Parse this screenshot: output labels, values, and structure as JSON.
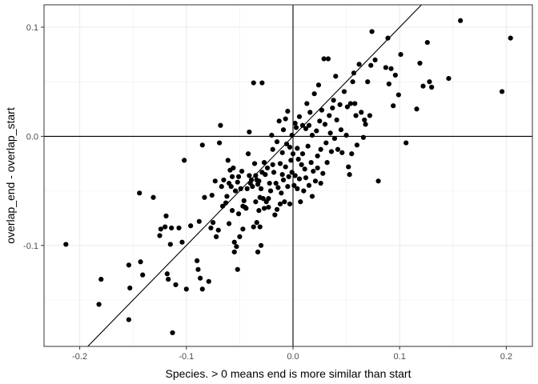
{
  "chart_data": {
    "type": "scatter",
    "title": "",
    "xlabel": "Species. > 0 means end is more similar than start",
    "ylabel": "overlap_end - overlap_start",
    "xlim": [
      -0.2335,
      0.2245
    ],
    "ylim": [
      -0.1925,
      0.1205
    ],
    "x_ticks": [
      -0.2,
      -0.1,
      0.0,
      0.1,
      0.2
    ],
    "x_tick_labels": [
      "-0.2",
      "-0.1",
      "0.0",
      "0.1",
      "0.2"
    ],
    "y_ticks": [
      -0.1,
      0.0,
      0.1
    ],
    "y_tick_labels": [
      "-0.1",
      "0.0",
      "0.1"
    ],
    "grid": true,
    "theme": "bw",
    "reference_lines": {
      "vline_x": 0,
      "hline_y": 0,
      "identity_line": {
        "slope": 1,
        "intercept": 0
      }
    },
    "point_color": "#000000",
    "series": [
      {
        "name": "",
        "points": [
          [
            -0.213,
            -0.099
          ],
          [
            -0.182,
            -0.154
          ],
          [
            -0.18,
            -0.131
          ],
          [
            -0.154,
            -0.168
          ],
          [
            -0.154,
            -0.118
          ],
          [
            -0.153,
            -0.139
          ],
          [
            -0.144,
            -0.052
          ],
          [
            -0.143,
            -0.115
          ],
          [
            -0.141,
            -0.127
          ],
          [
            -0.131,
            -0.056
          ],
          [
            -0.125,
            -0.091
          ],
          [
            -0.124,
            -0.085
          ],
          [
            -0.12,
            -0.083
          ],
          [
            -0.119,
            -0.073
          ],
          [
            -0.118,
            -0.126
          ],
          [
            -0.117,
            -0.131
          ],
          [
            -0.115,
            -0.099
          ],
          [
            -0.114,
            -0.084
          ],
          [
            -0.113,
            -0.18
          ],
          [
            -0.11,
            -0.136
          ],
          [
            -0.107,
            -0.084
          ],
          [
            -0.104,
            -0.097
          ],
          [
            -0.102,
            -0.022
          ],
          [
            -0.1,
            -0.14
          ],
          [
            -0.096,
            -0.082
          ],
          [
            -0.09,
            -0.114
          ],
          [
            -0.089,
            -0.122
          ],
          [
            -0.088,
            -0.078
          ],
          [
            -0.087,
            -0.13
          ],
          [
            -0.085,
            -0.14
          ],
          [
            -0.085,
            -0.008
          ],
          [
            -0.083,
            -0.056
          ],
          [
            -0.079,
            -0.133
          ],
          [
            -0.077,
            -0.084
          ],
          [
            -0.076,
            -0.054
          ],
          [
            -0.075,
            -0.079
          ],
          [
            -0.073,
            -0.041
          ],
          [
            -0.072,
            -0.092
          ],
          [
            -0.07,
            -0.086
          ],
          [
            -0.069,
            -0.006
          ],
          [
            -0.068,
            0.01
          ],
          [
            -0.067,
            -0.046
          ],
          [
            -0.066,
            -0.064
          ],
          [
            -0.065,
            -0.04
          ],
          [
            -0.063,
            -0.061
          ],
          [
            -0.062,
            -0.055
          ],
          [
            -0.061,
            -0.022
          ],
          [
            -0.06,
            -0.08
          ],
          [
            -0.06,
            -0.043
          ],
          [
            -0.059,
            -0.031
          ],
          [
            -0.058,
            -0.046
          ],
          [
            -0.057,
            -0.037
          ],
          [
            -0.057,
            -0.068
          ],
          [
            -0.056,
            -0.029
          ],
          [
            -0.055,
            -0.097
          ],
          [
            -0.055,
            -0.106
          ],
          [
            -0.054,
            -0.05
          ],
          [
            -0.053,
            -0.101
          ],
          [
            -0.052,
            -0.042
          ],
          [
            -0.052,
            -0.122
          ],
          [
            -0.051,
            -0.037
          ],
          [
            -0.051,
            -0.071
          ],
          [
            -0.05,
            -0.092
          ],
          [
            -0.049,
            -0.048
          ],
          [
            -0.048,
            -0.032
          ],
          [
            -0.047,
            -0.064
          ],
          [
            -0.047,
            -0.085
          ],
          [
            -0.046,
            -0.059
          ],
          [
            -0.045,
            -0.065
          ],
          [
            -0.044,
            -0.066
          ],
          [
            -0.043,
            -0.048
          ],
          [
            -0.042,
            -0.016
          ],
          [
            -0.041,
            -0.036
          ],
          [
            -0.041,
            0.004
          ],
          [
            -0.04,
            -0.043
          ],
          [
            -0.039,
            -0.04
          ],
          [
            -0.038,
            -0.046
          ],
          [
            -0.037,
            -0.083
          ],
          [
            -0.037,
            0.049
          ],
          [
            -0.036,
            -0.025
          ],
          [
            -0.035,
            -0.036
          ],
          [
            -0.035,
            -0.06
          ],
          [
            -0.034,
            -0.04
          ],
          [
            -0.034,
            -0.079
          ],
          [
            -0.033,
            -0.044
          ],
          [
            -0.033,
            -0.106
          ],
          [
            -0.032,
            -0.041
          ],
          [
            -0.032,
            -0.068
          ],
          [
            -0.031,
            -0.056
          ],
          [
            -0.031,
            -0.083
          ],
          [
            -0.03,
            -0.048
          ],
          [
            -0.03,
            -0.1
          ],
          [
            -0.029,
            -0.033
          ],
          [
            -0.029,
            0.049
          ],
          [
            -0.028,
            -0.057
          ],
          [
            -0.027,
            -0.024
          ],
          [
            -0.027,
            -0.066
          ],
          [
            -0.026,
            -0.035
          ],
          [
            -0.025,
            -0.06
          ],
          [
            -0.024,
            -0.029
          ],
          [
            -0.023,
            -0.057
          ],
          [
            -0.023,
            -0.065
          ],
          [
            -0.022,
            -0.043
          ],
          [
            -0.021,
            -0.05
          ],
          [
            -0.02,
            0.001
          ],
          [
            -0.019,
            -0.026
          ],
          [
            -0.019,
            -0.012
          ],
          [
            -0.018,
            -0.033
          ],
          [
            -0.017,
            -0.072
          ],
          [
            -0.016,
            -0.043
          ],
          [
            -0.015,
            -0.005
          ],
          [
            -0.015,
            -0.067
          ],
          [
            -0.014,
            -0.047
          ],
          [
            -0.013,
            0.014
          ],
          [
            -0.012,
            -0.025
          ],
          [
            -0.012,
            -0.062
          ],
          [
            -0.011,
            -0.052
          ],
          [
            -0.01,
            -0.015
          ],
          [
            -0.01,
            -0.035
          ],
          [
            -0.009,
            0.006
          ],
          [
            -0.009,
            -0.04
          ],
          [
            -0.008,
            -0.06
          ],
          [
            -0.007,
            -0.028
          ],
          [
            -0.007,
            0.016
          ],
          [
            -0.006,
            -0.007
          ],
          [
            -0.005,
            -0.046
          ],
          [
            -0.005,
            0.023
          ],
          [
            -0.004,
            -0.037
          ],
          [
            -0.003,
            -0.01
          ],
          [
            -0.003,
            -0.062
          ],
          [
            -0.002,
            -0.022
          ],
          [
            -0.001,
            -0.033
          ],
          [
            -0.001,
            0.001
          ],
          [
            0.0,
            -0.016
          ],
          [
            0.001,
            -0.045
          ],
          [
            0.002,
            0.012
          ],
          [
            0.002,
            -0.036
          ],
          [
            0.003,
            0.008
          ],
          [
            0.004,
            -0.011
          ],
          [
            0.004,
            -0.048
          ],
          [
            0.005,
            -0.021
          ],
          [
            0.006,
            0.018
          ],
          [
            0.006,
            -0.039
          ],
          [
            0.007,
            -0.06
          ],
          [
            0.008,
            -0.026
          ],
          [
            0.009,
            0.01
          ],
          [
            0.009,
            -0.016
          ],
          [
            0.01,
            -0.05
          ],
          [
            0.011,
            -0.03
          ],
          [
            0.012,
            0.007
          ],
          [
            0.012,
            -0.038
          ],
          [
            0.013,
            0.03
          ],
          [
            0.014,
            -0.009
          ],
          [
            0.015,
            0.01
          ],
          [
            0.015,
            -0.045
          ],
          [
            0.016,
            0.022
          ],
          [
            0.017,
            -0.024
          ],
          [
            0.018,
            0.001
          ],
          [
            0.018,
            -0.055
          ],
          [
            0.019,
            -0.032
          ],
          [
            0.02,
            0.039
          ],
          [
            0.021,
            -0.041
          ],
          [
            0.022,
            0.005
          ],
          [
            0.023,
            -0.018
          ],
          [
            0.023,
            -0.029
          ],
          [
            0.024,
            0.047
          ],
          [
            0.025,
            0.014
          ],
          [
            0.026,
            -0.043
          ],
          [
            0.026,
            -0.012
          ],
          [
            0.027,
            0.024
          ],
          [
            0.028,
            -0.034
          ],
          [
            0.029,
            0.071
          ],
          [
            0.03,
            0.011
          ],
          [
            0.031,
            -0.006
          ],
          [
            0.032,
            -0.024
          ],
          [
            0.033,
            0.071
          ],
          [
            0.034,
            0.019
          ],
          [
            0.035,
            0.003
          ],
          [
            0.036,
            -0.014
          ],
          [
            0.037,
            0.026
          ],
          [
            0.038,
            0.033
          ],
          [
            0.039,
            -0.002
          ],
          [
            0.04,
            0.055
          ],
          [
            0.041,
            0.015
          ],
          [
            0.042,
            -0.012
          ],
          [
            0.044,
            0.029
          ],
          [
            0.045,
            0.006
          ],
          [
            0.046,
            -0.015
          ],
          [
            0.048,
            0.041
          ],
          [
            0.05,
            0.001
          ],
          [
            0.051,
            0.027
          ],
          [
            0.052,
            -0.028
          ],
          [
            0.053,
            -0.035
          ],
          [
            0.054,
            0.03
          ],
          [
            0.055,
            -0.016
          ],
          [
            0.056,
            0.05
          ],
          [
            0.057,
            0.058
          ],
          [
            0.058,
            0.03
          ],
          [
            0.059,
            0.019
          ],
          [
            0.06,
            -0.008
          ],
          [
            0.062,
            0.066
          ],
          [
            0.064,
            0.022
          ],
          [
            0.066,
            -0.001
          ],
          [
            0.067,
            0.015
          ],
          [
            0.068,
            0.011
          ],
          [
            0.07,
            0.05
          ],
          [
            0.072,
            0.019
          ],
          [
            0.073,
            0.065
          ],
          [
            0.074,
            0.096
          ],
          [
            0.077,
            0.07
          ],
          [
            0.08,
            -0.041
          ],
          [
            0.087,
            0.063
          ],
          [
            0.089,
            0.09
          ],
          [
            0.09,
            0.048
          ],
          [
            0.092,
            0.062
          ],
          [
            0.094,
            0.028
          ],
          [
            0.096,
            0.056
          ],
          [
            0.099,
            0.038
          ],
          [
            0.101,
            0.075
          ],
          [
            0.106,
            -0.006
          ],
          [
            0.116,
            0.025
          ],
          [
            0.119,
            0.067
          ],
          [
            0.122,
            0.046
          ],
          [
            0.126,
            0.086
          ],
          [
            0.128,
            0.05
          ],
          [
            0.13,
            0.045
          ],
          [
            0.146,
            0.053
          ],
          [
            0.157,
            0.106
          ],
          [
            0.196,
            0.041
          ],
          [
            0.204,
            0.09
          ]
        ]
      }
    ]
  }
}
